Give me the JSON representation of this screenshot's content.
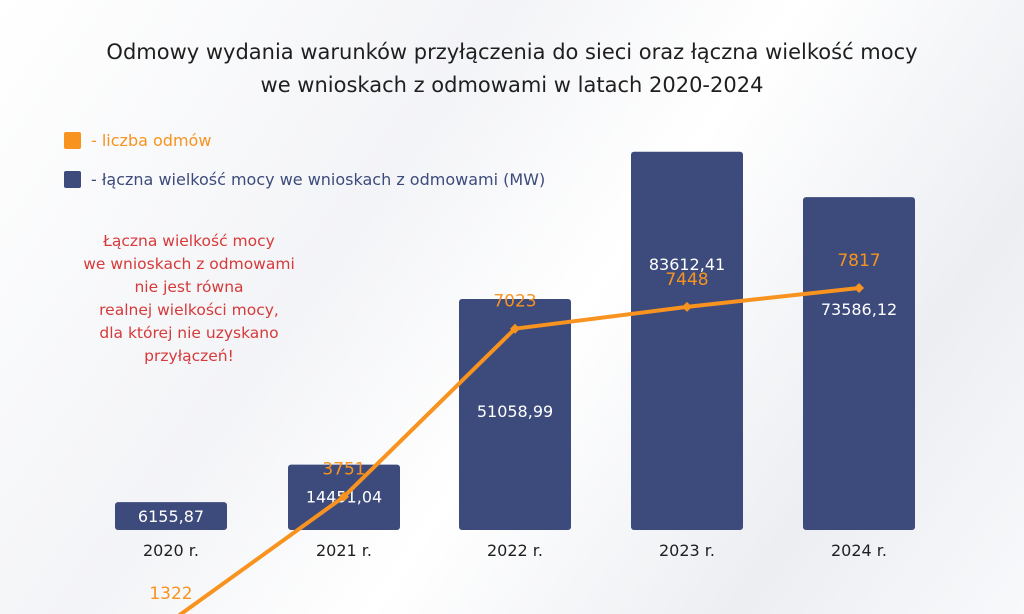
{
  "chart_data": {
    "type": "bar+line",
    "title_lines": [
      "Odmowy wydania warunków przyłączenia do sieci oraz łączna wielkość mocy",
      "we wnioskach z odmowami w latach 2020-2024"
    ],
    "categories": [
      "2020 r.",
      "2021 r.",
      "2022 r.",
      "2023 r.",
      "2024 r."
    ],
    "bars": {
      "name": "- łączna wielkość mocy we wnioskach z odmowami (MW)",
      "color": "#3d4b7c",
      "values": [
        6155.87,
        14451.04,
        51058.99,
        83612.41,
        73586.12
      ],
      "labels": [
        "6155,87",
        "14451,04",
        "51058,99",
        "83612,41",
        "73586,12"
      ]
    },
    "line": {
      "name": "- liczba odmów",
      "color": "#f7931e",
      "values": [
        1322,
        3751,
        7023,
        7448,
        7817
      ],
      "labels": [
        "1322",
        "3751",
        "7023",
        "7448",
        "7817"
      ]
    },
    "legend_position": "top-left",
    "grid": false
  },
  "annotation": {
    "lines": [
      "Łączna wielkość mocy",
      "we wnioskach z odmowami",
      "nie jest równa",
      "realnej wielkości mocy,",
      "dla której nie uzyskano",
      "przyłączeń!"
    ],
    "color": "#d63a3a"
  }
}
